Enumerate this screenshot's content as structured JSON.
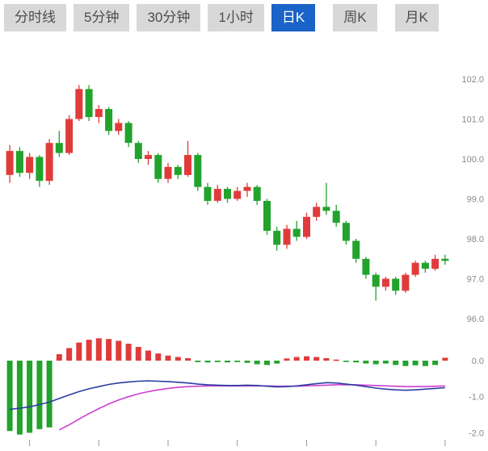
{
  "toolbar": {
    "tabs": [
      {
        "label": "分时线",
        "active": false
      },
      {
        "label": "5分钟",
        "active": false
      },
      {
        "label": "30分钟",
        "active": false
      },
      {
        "label": "1小时",
        "active": false
      },
      {
        "label": "日K",
        "active": true
      },
      {
        "label": "周K",
        "active": false
      },
      {
        "label": "月K",
        "active": false
      }
    ],
    "colors": {
      "active_bg": "#1a63c8",
      "active_text": "#ffffff",
      "inactive_bg": "#d8d8d8",
      "inactive_text": "#4d4d4d"
    }
  },
  "chart_data": {
    "type": "candlestick",
    "title": "",
    "panels": {
      "price": {
        "tick_values": [
          102,
          101,
          100,
          99,
          98,
          97,
          96
        ],
        "tick_labels": [
          "102.0",
          "101.0",
          "100.0",
          "99.0",
          "98.0",
          "97.0",
          "96.0"
        ],
        "range": [
          95.6,
          102.8
        ]
      },
      "macd": {
        "tick_values": [
          0,
          -1,
          -2
        ],
        "tick_labels": [
          "0.0",
          "-1.0",
          "-2.0"
        ],
        "range": [
          -2.3,
          0.7
        ]
      }
    },
    "colors": {
      "up": "#e03b3b",
      "down": "#22a32c",
      "dif": "#2c3da0",
      "dea": "#cf3ecf",
      "axis_text": "#8a8a8a",
      "tick_mark": "#9a9a9a"
    },
    "candles": [
      [
        99.6,
        100.35,
        99.4,
        100.2
      ],
      [
        100.2,
        100.3,
        99.55,
        99.65
      ],
      [
        99.65,
        100.15,
        99.5,
        100.05
      ],
      [
        100.05,
        100.1,
        99.3,
        99.45
      ],
      [
        99.45,
        100.5,
        99.35,
        100.4
      ],
      [
        100.4,
        100.7,
        100.05,
        100.15
      ],
      [
        100.15,
        101.1,
        100.1,
        101.0
      ],
      [
        101.0,
        101.85,
        100.95,
        101.75
      ],
      [
        101.75,
        101.85,
        100.95,
        101.05
      ],
      [
        101.05,
        101.35,
        100.9,
        101.25
      ],
      [
        101.25,
        101.3,
        100.6,
        100.7
      ],
      [
        100.7,
        101.0,
        100.6,
        100.9
      ],
      [
        100.9,
        100.95,
        100.3,
        100.4
      ],
      [
        100.4,
        100.45,
        99.9,
        100.0
      ],
      [
        100.0,
        100.2,
        99.85,
        100.1
      ],
      [
        100.1,
        100.15,
        99.4,
        99.5
      ],
      [
        99.5,
        99.9,
        99.4,
        99.8
      ],
      [
        99.8,
        99.85,
        99.5,
        99.6
      ],
      [
        99.6,
        100.45,
        99.55,
        100.1
      ],
      [
        100.1,
        100.15,
        99.2,
        99.3
      ],
      [
        99.3,
        99.4,
        98.85,
        98.95
      ],
      [
        98.95,
        99.35,
        98.9,
        99.25
      ],
      [
        99.25,
        99.3,
        98.9,
        99.0
      ],
      [
        99.0,
        99.3,
        98.95,
        99.2
      ],
      [
        99.2,
        99.4,
        99.05,
        99.3
      ],
      [
        99.3,
        99.35,
        98.85,
        98.95
      ],
      [
        98.95,
        99.0,
        98.1,
        98.2
      ],
      [
        98.2,
        98.3,
        97.7,
        97.85
      ],
      [
        97.85,
        98.35,
        97.75,
        98.25
      ],
      [
        98.25,
        98.45,
        97.95,
        98.05
      ],
      [
        98.05,
        98.65,
        98.0,
        98.55
      ],
      [
        98.55,
        98.9,
        98.45,
        98.8
      ],
      [
        98.8,
        99.4,
        98.6,
        98.7
      ],
      [
        98.7,
        98.85,
        98.3,
        98.4
      ],
      [
        98.4,
        98.45,
        97.85,
        97.95
      ],
      [
        97.95,
        98.0,
        97.4,
        97.5
      ],
      [
        97.5,
        97.55,
        97.0,
        97.1
      ],
      [
        97.1,
        97.15,
        96.45,
        96.8
      ],
      [
        96.8,
        97.05,
        96.7,
        97.0
      ],
      [
        97.0,
        97.05,
        96.6,
        96.7
      ],
      [
        96.7,
        97.15,
        96.65,
        97.1
      ],
      [
        97.1,
        97.45,
        97.05,
        97.4
      ],
      [
        97.4,
        97.45,
        97.15,
        97.25
      ],
      [
        97.25,
        97.6,
        97.2,
        97.5
      ],
      [
        97.5,
        97.6,
        97.35,
        97.45
      ]
    ],
    "macd": {
      "histogram": [
        -1.95,
        -2.05,
        -2.0,
        -1.9,
        -1.85,
        0.18,
        0.35,
        0.5,
        0.58,
        0.62,
        0.6,
        0.55,
        0.47,
        0.38,
        0.28,
        0.2,
        0.14,
        0.1,
        0.07,
        -0.04,
        -0.05,
        -0.04,
        -0.05,
        -0.04,
        -0.06,
        -0.1,
        -0.12,
        -0.08,
        0.06,
        0.1,
        0.12,
        0.1,
        0.07,
        0.03,
        -0.03,
        -0.05,
        -0.08,
        -0.1,
        -0.08,
        -0.12,
        -0.15,
        -0.13,
        -0.15,
        -0.12,
        0.08
      ],
      "dif": [
        -1.35,
        -1.32,
        -1.28,
        -1.22,
        -1.15,
        -1.05,
        -0.95,
        -0.86,
        -0.78,
        -0.72,
        -0.66,
        -0.62,
        -0.59,
        -0.57,
        -0.56,
        -0.57,
        -0.58,
        -0.6,
        -0.62,
        -0.65,
        -0.67,
        -0.68,
        -0.69,
        -0.69,
        -0.68,
        -0.69,
        -0.71,
        -0.73,
        -0.72,
        -0.7,
        -0.67,
        -0.64,
        -0.61,
        -0.62,
        -0.65,
        -0.68,
        -0.72,
        -0.76,
        -0.79,
        -0.81,
        -0.82,
        -0.81,
        -0.79,
        -0.77,
        -0.75
      ],
      "dea": [
        null,
        null,
        null,
        null,
        null,
        -1.92,
        -1.78,
        -1.62,
        -1.47,
        -1.33,
        -1.2,
        -1.09,
        -1.0,
        -0.92,
        -0.86,
        -0.81,
        -0.77,
        -0.74,
        -0.72,
        -0.71,
        -0.7,
        -0.7,
        -0.7,
        -0.7,
        -0.7,
        -0.7,
        -0.7,
        -0.71,
        -0.71,
        -0.71,
        -0.7,
        -0.69,
        -0.68,
        -0.67,
        -0.67,
        -0.67,
        -0.68,
        -0.69,
        -0.7,
        -0.71,
        -0.72,
        -0.72,
        -0.72,
        -0.71,
        -0.7
      ]
    },
    "legend": [],
    "grid": false
  }
}
